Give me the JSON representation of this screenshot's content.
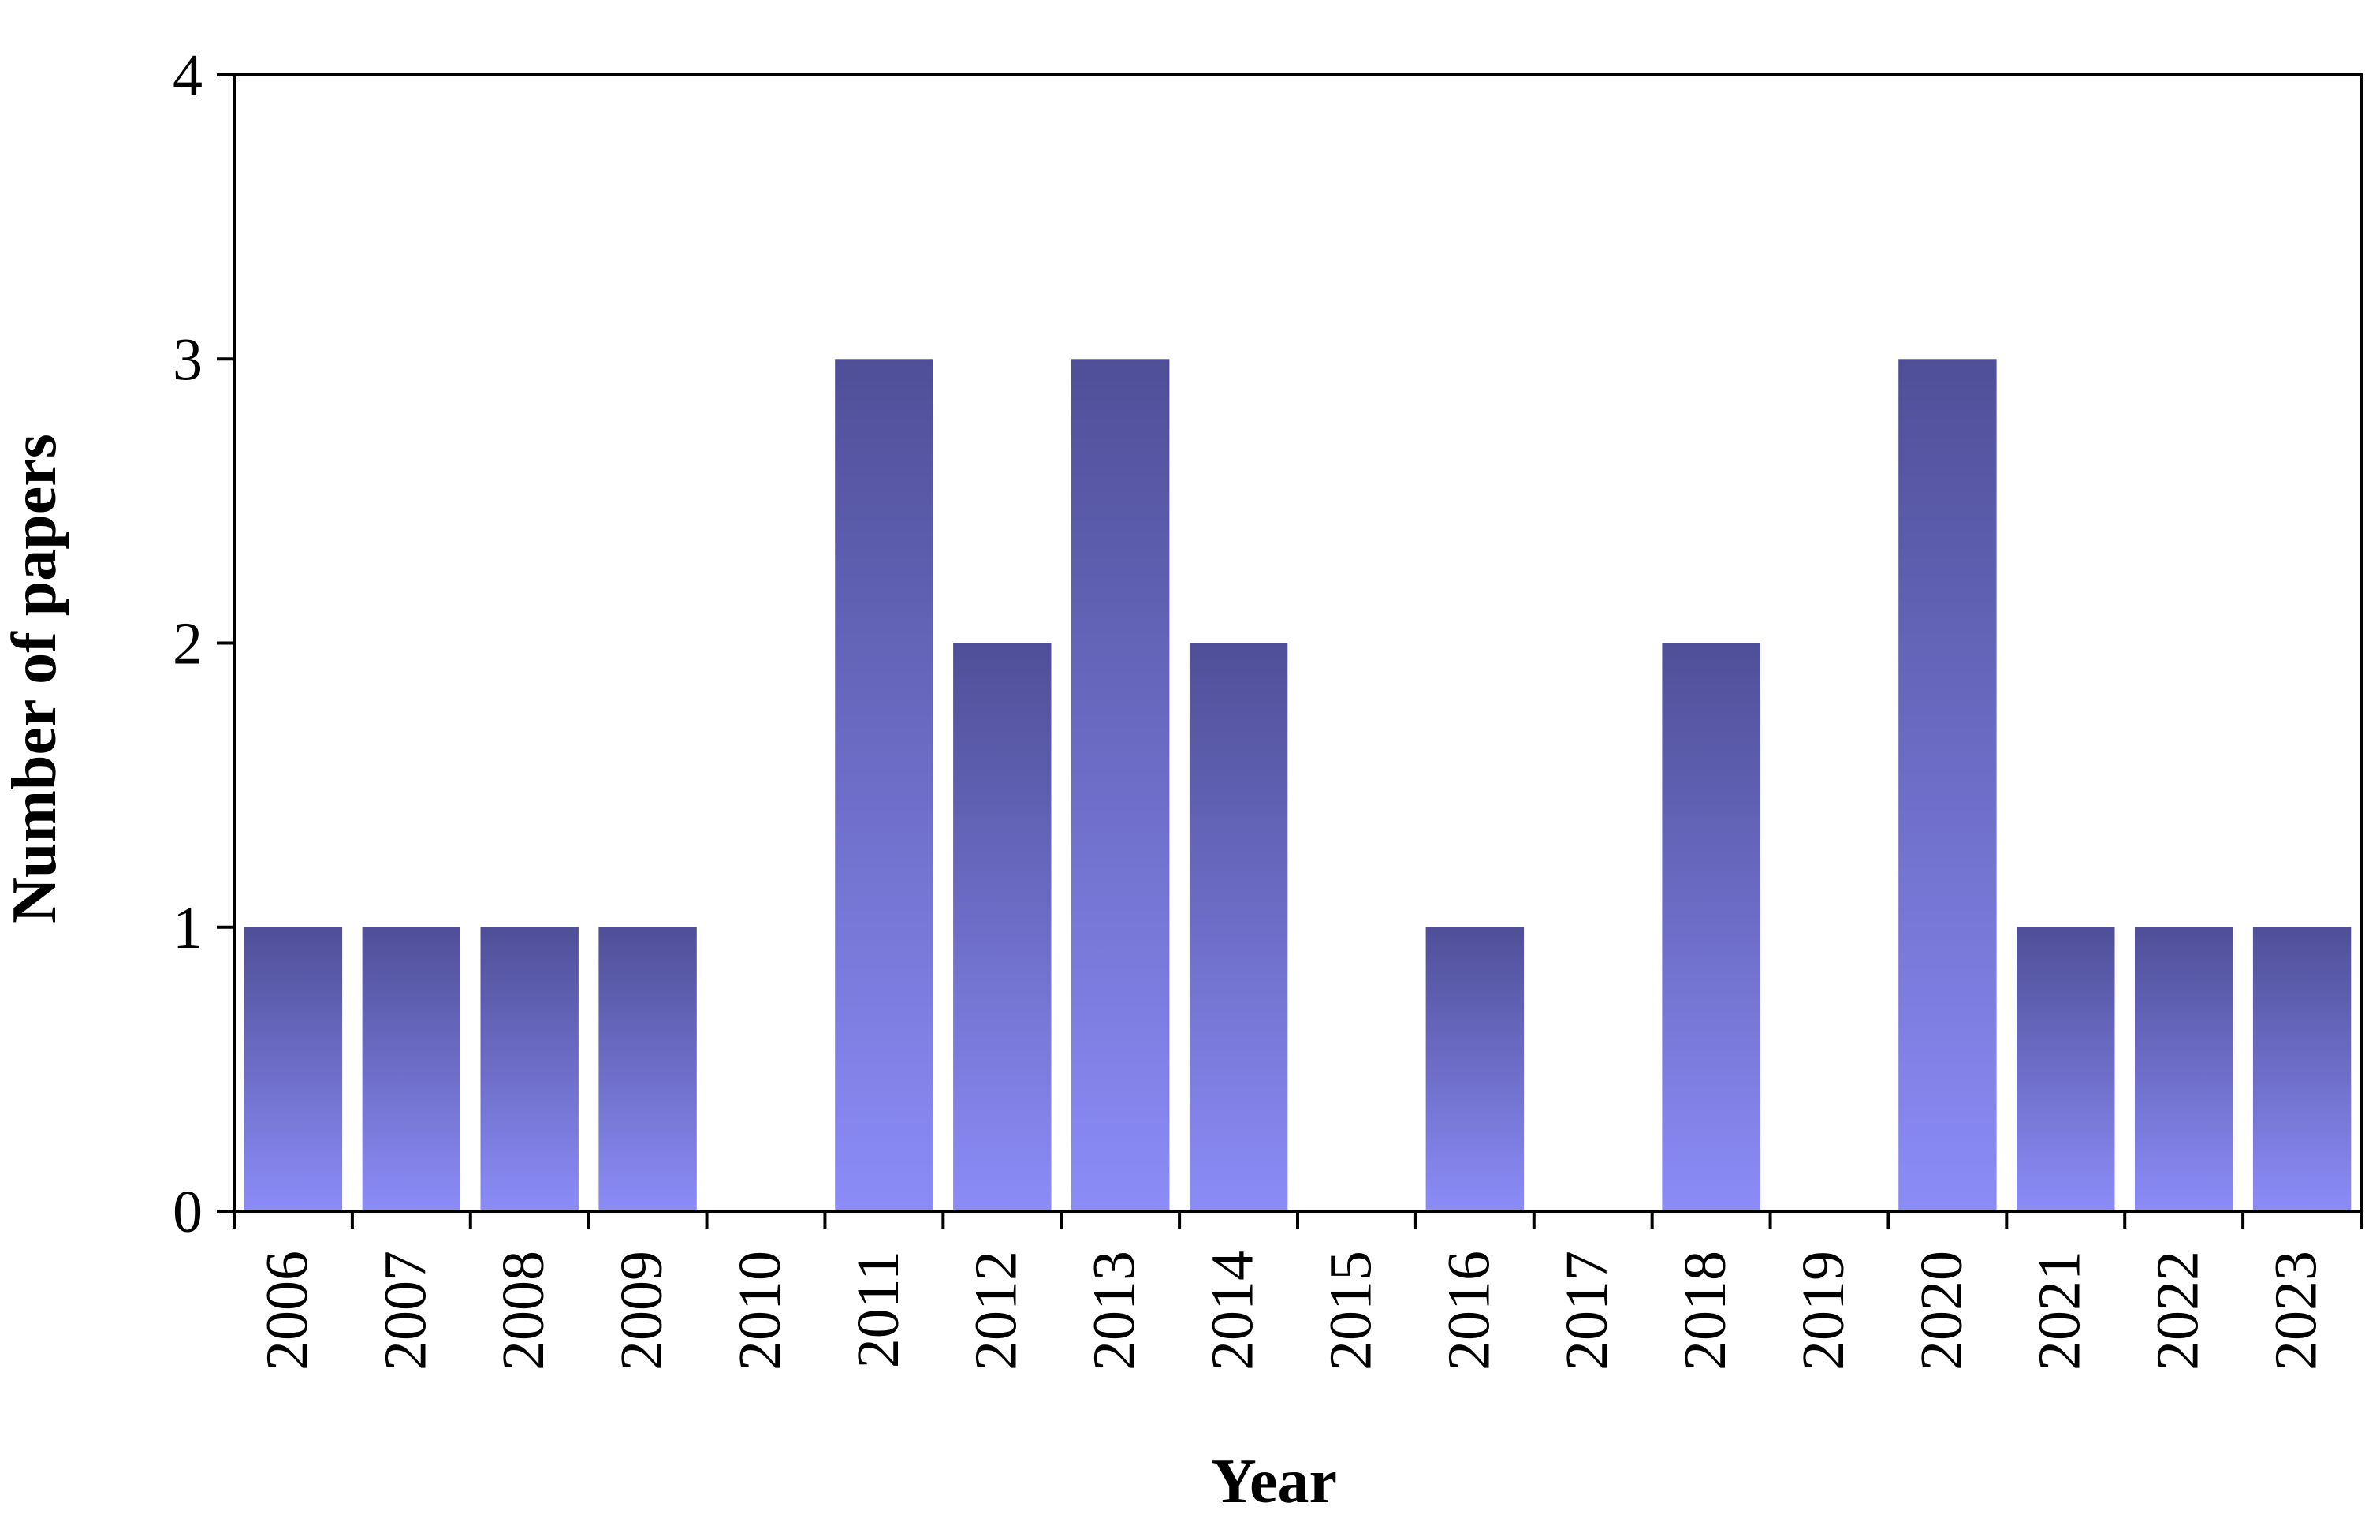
{
  "chart_data": {
    "type": "bar",
    "categories": [
      "2006",
      "2007",
      "2008",
      "2009",
      "2010",
      "2011",
      "2012",
      "2013",
      "2014",
      "2015",
      "2016",
      "2017",
      "2018",
      "2019",
      "2020",
      "2021",
      "2022",
      "2023"
    ],
    "series": [
      {
        "values": [
          1,
          1,
          1,
          1,
          0,
          3,
          2,
          3,
          2,
          0,
          1,
          0,
          2,
          0,
          3,
          1,
          1,
          1
        ]
      }
    ],
    "title": "",
    "xlabel": "Year",
    "ylabel": "Number of papers",
    "ylim": [
      0,
      4
    ],
    "yticks": [
      "0",
      "1",
      "2",
      "3",
      "4"
    ],
    "grid": false,
    "legend": "none",
    "colors": {
      "bar_top": "#4f4f98",
      "bar_bottom": "#8c8cf8",
      "axis": "#000000",
      "background": "#ffffff"
    }
  }
}
